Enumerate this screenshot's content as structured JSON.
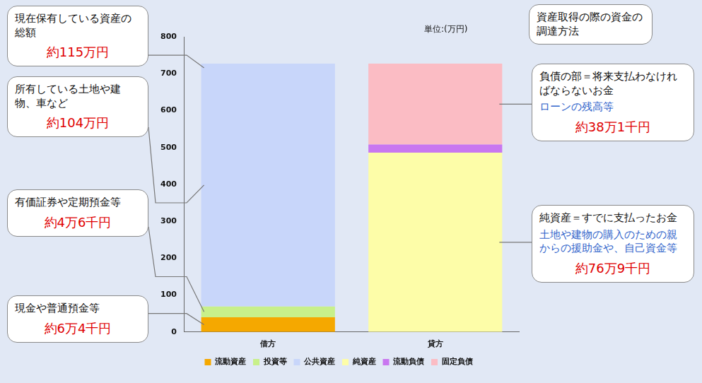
{
  "chart_data": {
    "type": "bar",
    "stacked": true,
    "ylabel": "単位:(万円)",
    "categories": [
      "借方",
      "貸方"
    ],
    "series": [
      {
        "name": "流動資産",
        "color": "#f5a800",
        "values": [
          40,
          null
        ]
      },
      {
        "name": "投資等",
        "color": "#c8f08a",
        "values": [
          29,
          null
        ]
      },
      {
        "name": "公共資産",
        "color": "#c8d6fa",
        "values": [
          658,
          null
        ]
      },
      {
        "name": "純資産",
        "color": "#fdfda8",
        "values": [
          null,
          486
        ]
      },
      {
        "name": "流動負債",
        "color": "#c977f0",
        "values": [
          null,
          22
        ]
      },
      {
        "name": "固定負債",
        "color": "#fbbcc4",
        "values": [
          null,
          219
        ]
      }
    ],
    "ylim": [
      0,
      800
    ],
    "yticks": [
      0,
      100,
      200,
      300,
      400,
      500,
      600,
      700,
      800
    ],
    "grid": false,
    "legend": "bottom",
    "annotations": [
      {
        "title": "現在保有している資産の総額",
        "amount": "約115万円"
      },
      {
        "title": "所有している土地や建物、車など",
        "amount": "約104万円"
      },
      {
        "title": "有価証券や定期預金等",
        "amount": "約4万6千円"
      },
      {
        "title": "現金や普通預金等",
        "amount": "約6万4千円"
      },
      {
        "title": "資産取得の際の資金の調達方法"
      },
      {
        "title": "負債の部＝将来支払わなければならないお金",
        "detail": "ローンの残高等",
        "amount": "約38万1千円"
      },
      {
        "title": "純資産＝すでに支払ったお金",
        "detail": "土地や建物の購入のための親からの援助金や、自己資金等",
        "amount": "約76万9千円"
      }
    ]
  }
}
